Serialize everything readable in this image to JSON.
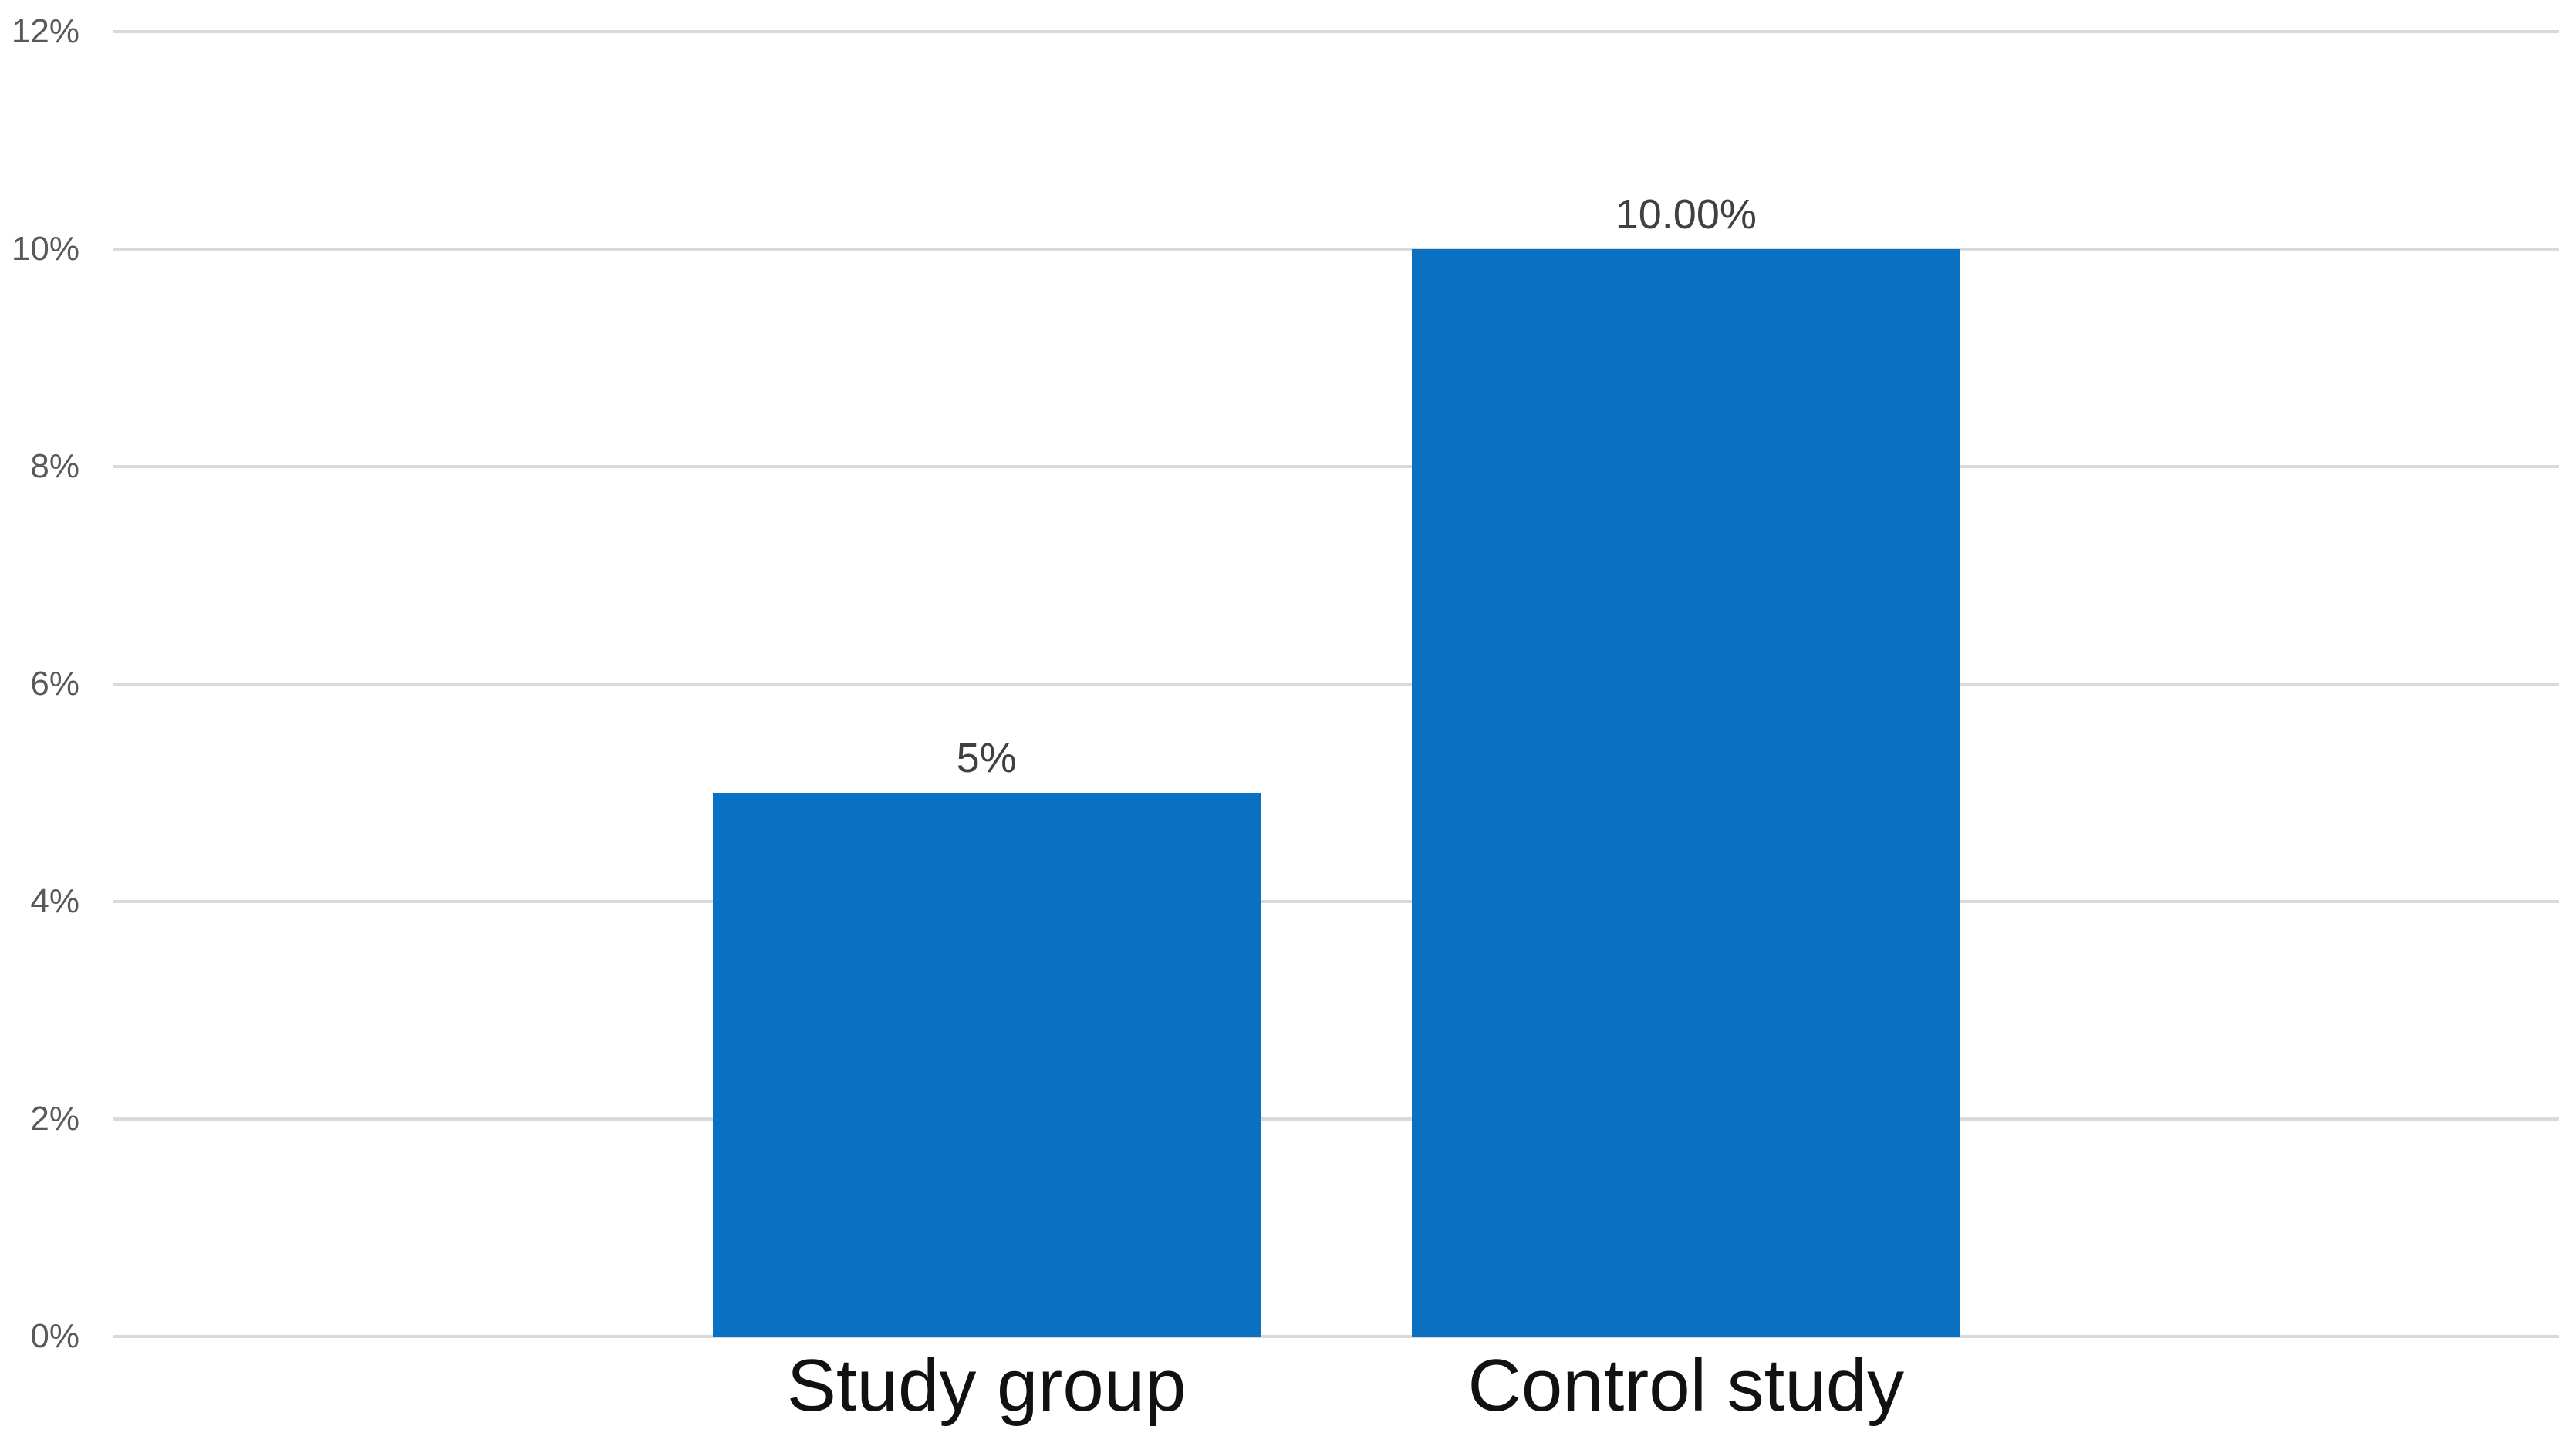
{
  "chart_data": {
    "type": "bar",
    "title": "",
    "categories": [
      "Study group",
      "Control study"
    ],
    "values": [
      5,
      10
    ],
    "data_labels": [
      "5%",
      "10.00%"
    ],
    "y_tick_values": [
      0,
      2,
      4,
      6,
      8,
      10,
      12
    ],
    "y_tick_labels": [
      "0%",
      "2%",
      "4%",
      "6%",
      "8%",
      "10%",
      "12%"
    ],
    "ylim": [
      0,
      12
    ],
    "xlabel": "",
    "ylabel": "",
    "grid": "horizontal-only",
    "legend": "none",
    "colors": {
      "bar_fill": "#0a70c2",
      "gridline": "#d9d9d9",
      "tick_label": "#595959",
      "data_label": "#404040",
      "category_label": "#111111",
      "background": "#ffffff"
    },
    "layout": {
      "bar_centers_frac": [
        0.357,
        0.643
      ],
      "bar_width_frac": 0.224
    }
  }
}
